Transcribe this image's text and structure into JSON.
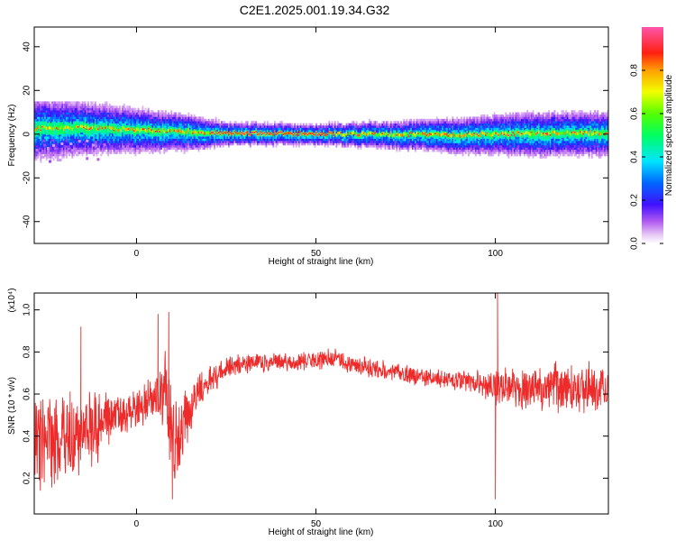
{
  "figure_title": "C2E1.2025.001.19.34.G32",
  "chart_data": [
    {
      "type": "heatmap",
      "title": "",
      "xlabel": "Height of straight line (km)",
      "ylabel": "Frequency (Hz)",
      "xlim": [
        -28.5,
        131.5
      ],
      "ylim": [
        -50,
        49
      ],
      "x_ticks": [
        0,
        50,
        100
      ],
      "y_ticks": [
        -40,
        -20,
        0,
        20,
        40
      ],
      "colorbar": {
        "label": "Normalized spectral amplitude",
        "range": [
          0,
          1
        ],
        "ticks": [
          0.0,
          0.2,
          0.4,
          0.6,
          0.8
        ]
      },
      "ridge": {
        "description_points": [
          {
            "x": -28,
            "freq": 2.5,
            "width": 6
          },
          {
            "x": -15,
            "freq": 3,
            "width": 5
          },
          {
            "x": 0,
            "freq": 2,
            "width": 4
          },
          {
            "x": 15,
            "freq": 1.2,
            "width": 3
          },
          {
            "x": 25,
            "freq": 0.5,
            "width": 1.5
          },
          {
            "x": 50,
            "freq": 0.2,
            "width": 1.2
          },
          {
            "x": 70,
            "freq": 0,
            "width": 2
          },
          {
            "x": 90,
            "freq": -0.3,
            "width": 3
          },
          {
            "x": 110,
            "freq": 0.3,
            "width": 4
          },
          {
            "x": 131,
            "freq": 0.5,
            "width": 4
          }
        ]
      }
    },
    {
      "type": "line",
      "title": "",
      "xlabel": "Height of straight line (km)",
      "ylabel": "SNR (10 * v/v)",
      "y_multiplier": "(x10⁴)",
      "xlim": [
        -28.5,
        131.5
      ],
      "ylim": [
        0.03,
        1.08
      ],
      "x_ticks": [
        0,
        50,
        100
      ],
      "y_ticks": [
        0.2,
        0.4,
        0.6,
        0.8,
        1.0
      ],
      "y_tick_labels": [
        "0.2",
        "0.4",
        "0.6",
        "0.8",
        "1.0"
      ],
      "series": [
        {
          "color": "#ee2b2b",
          "envelope": {
            "x": [
              -28.5,
              -25,
              -20,
              -15,
              -10,
              -5,
              0,
              5,
              7,
              9,
              10,
              12,
              15,
              20,
              25,
              30,
              40,
              50,
              55,
              60,
              70,
              80,
              90,
              98,
              100,
              102,
              110,
              120,
              131.5
            ],
            "mean": [
              0.35,
              0.4,
              0.37,
              0.42,
              0.45,
              0.5,
              0.53,
              0.58,
              0.6,
              0.55,
              0.4,
              0.36,
              0.55,
              0.66,
              0.72,
              0.74,
              0.75,
              0.76,
              0.77,
              0.74,
              0.71,
              0.68,
              0.66,
              0.64,
              0.63,
              0.64,
              0.63,
              0.63,
              0.63
            ],
            "amplitude": [
              0.25,
              0.25,
              0.25,
              0.22,
              0.2,
              0.12,
              0.1,
              0.12,
              0.18,
              0.35,
              0.3,
              0.2,
              0.15,
              0.08,
              0.06,
              0.06,
              0.05,
              0.05,
              0.05,
              0.05,
              0.05,
              0.05,
              0.06,
              0.08,
              0.1,
              0.1,
              0.12,
              0.13,
              0.14
            ]
          },
          "spikes": [
            {
              "x": -15.5,
              "y": 0.92
            },
            {
              "x": 6,
              "y": 0.98
            },
            {
              "x": 9,
              "y": 0.99
            },
            {
              "x": 10,
              "y": 0.1
            },
            {
              "x": 100,
              "y": 0.1
            },
            {
              "x": 100.6,
              "y": 1.08
            }
          ]
        }
      ]
    }
  ]
}
